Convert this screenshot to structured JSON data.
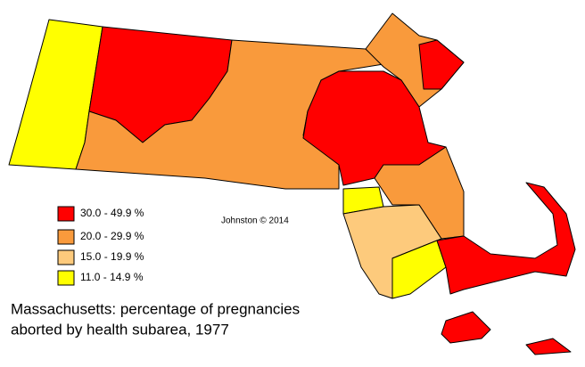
{
  "map": {
    "legend": [
      {
        "label": "30.0 - 49.9 %",
        "color": "#ff0000"
      },
      {
        "label": "20.0 - 29.9 %",
        "color": "#f99a3c"
      },
      {
        "label": "15.0 - 19.9 %",
        "color": "#fdca7c"
      },
      {
        "label": "11.0 - 14.9 %",
        "color": "#ffff00"
      }
    ],
    "credit": "Johnston © 2014",
    "caption": [
      "Massachusetts:  percentage of pregnancies",
      "aborted by health subarea, 1977"
    ]
  }
}
